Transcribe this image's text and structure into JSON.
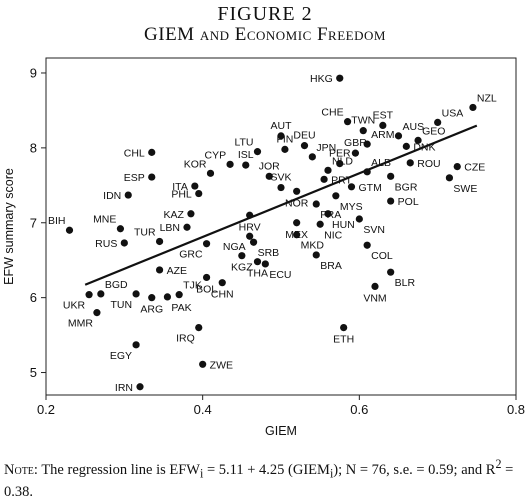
{
  "figure": {
    "number": "FIGURE 2",
    "title": "GIEM and Economic Freedom"
  },
  "note": {
    "prefix": "Note:",
    "text1": "The regression line is EFW",
    "sub1": "i",
    "text2": " = 5.11 + 4.25 (GIEM",
    "sub2": "i",
    "text3": "); N = 76, s.e. = 0.59; and R",
    "sup": "2",
    "text4": " = 0.38."
  },
  "chart_data": {
    "type": "scatter",
    "xlabel": "GIEM",
    "ylabel": "EFW summary score",
    "xlim": [
      0.2,
      0.8
    ],
    "ylim": [
      4.7,
      9.2
    ],
    "xticks": [
      "0.2",
      "0.4",
      "0.6",
      "0.8"
    ],
    "xtick_values": [
      0.2,
      0.4,
      0.6,
      0.8
    ],
    "yticks": [
      "5",
      "6",
      "7",
      "8",
      "9"
    ],
    "ytick_values": [
      5,
      6,
      7,
      8,
      9
    ],
    "grid": false,
    "regression": {
      "intercept": 5.11,
      "slope": 4.25,
      "x_range": [
        0.25,
        0.75
      ]
    },
    "points": [
      {
        "label": "HKG",
        "x": 0.575,
        "y": 8.93,
        "pos": "w"
      },
      {
        "label": "NZL",
        "x": 0.745,
        "y": 8.54,
        "pos": "ne"
      },
      {
        "label": "CHE",
        "x": 0.585,
        "y": 8.35,
        "pos": "nw"
      },
      {
        "label": "TWN",
        "x": 0.605,
        "y": 8.23,
        "pos": "n"
      },
      {
        "label": "EST",
        "x": 0.63,
        "y": 8.3,
        "pos": "n"
      },
      {
        "label": "USA",
        "x": 0.7,
        "y": 8.34,
        "pos": "ne"
      },
      {
        "label": "AUT",
        "x": 0.5,
        "y": 8.16,
        "pos": "n"
      },
      {
        "label": "DEU",
        "x": 0.53,
        "y": 8.03,
        "pos": "n"
      },
      {
        "label": "ARM",
        "x": 0.61,
        "y": 8.05,
        "pos": "ne"
      },
      {
        "label": "AUS",
        "x": 0.65,
        "y": 8.16,
        "pos": "ne"
      },
      {
        "label": "GEO",
        "x": 0.675,
        "y": 8.1,
        "pos": "ne"
      },
      {
        "label": "DNK",
        "x": 0.66,
        "y": 8.02,
        "pos": "e"
      },
      {
        "label": "FIN",
        "x": 0.505,
        "y": 7.98,
        "pos": "n"
      },
      {
        "label": "LTU",
        "x": 0.47,
        "y": 7.95,
        "pos": "nw"
      },
      {
        "label": "JPN",
        "x": 0.54,
        "y": 7.88,
        "pos": "ne"
      },
      {
        "label": "GBR",
        "x": 0.595,
        "y": 7.93,
        "pos": "n"
      },
      {
        "label": "CHL",
        "x": 0.335,
        "y": 7.94,
        "pos": "w"
      },
      {
        "label": "CYP",
        "x": 0.435,
        "y": 7.78,
        "pos": "nw"
      },
      {
        "label": "ISL",
        "x": 0.455,
        "y": 7.77,
        "pos": "n"
      },
      {
        "label": "PER",
        "x": 0.575,
        "y": 7.79,
        "pos": "n"
      },
      {
        "label": "NLD",
        "x": 0.56,
        "y": 7.7,
        "pos": "ne"
      },
      {
        "label": "KOR",
        "x": 0.41,
        "y": 7.66,
        "pos": "nw"
      },
      {
        "label": "JOR",
        "x": 0.485,
        "y": 7.62,
        "pos": "n"
      },
      {
        "label": "PRT",
        "x": 0.555,
        "y": 7.58,
        "pos": "e"
      },
      {
        "label": "ALB",
        "x": 0.61,
        "y": 7.68,
        "pos": "ne"
      },
      {
        "label": "ESP",
        "x": 0.335,
        "y": 7.61,
        "pos": "w"
      },
      {
        "label": "ITA",
        "x": 0.39,
        "y": 7.49,
        "pos": "w"
      },
      {
        "label": "SVK",
        "x": 0.5,
        "y": 7.47,
        "pos": "n"
      },
      {
        "label": "ROU",
        "x": 0.665,
        "y": 7.8,
        "pos": "e"
      },
      {
        "label": "CZE",
        "x": 0.725,
        "y": 7.75,
        "pos": "e"
      },
      {
        "label": "IDN",
        "x": 0.305,
        "y": 7.37,
        "pos": "w"
      },
      {
        "label": "PHL",
        "x": 0.395,
        "y": 7.39,
        "pos": "w"
      },
      {
        "label": "NOR",
        "x": 0.52,
        "y": 7.42,
        "pos": "s"
      },
      {
        "label": "GTM",
        "x": 0.59,
        "y": 7.48,
        "pos": "e"
      },
      {
        "label": "BGR",
        "x": 0.64,
        "y": 7.62,
        "pos": "se"
      },
      {
        "label": "SWE",
        "x": 0.715,
        "y": 7.6,
        "pos": "se"
      },
      {
        "label": "MYS",
        "x": 0.57,
        "y": 7.36,
        "pos": "se"
      },
      {
        "label": "FRA",
        "x": 0.545,
        "y": 7.25,
        "pos": "se"
      },
      {
        "label": "POL",
        "x": 0.64,
        "y": 7.29,
        "pos": "e"
      },
      {
        "label": "KAZ",
        "x": 0.385,
        "y": 7.12,
        "pos": "w"
      },
      {
        "label": "HRV",
        "x": 0.46,
        "y": 7.1,
        "pos": "s"
      },
      {
        "label": "HUN",
        "x": 0.56,
        "y": 7.12,
        "pos": "se"
      },
      {
        "label": "BIH",
        "x": 0.23,
        "y": 6.9,
        "pos": "nw"
      },
      {
        "label": "MNE",
        "x": 0.295,
        "y": 6.92,
        "pos": "nw"
      },
      {
        "label": "LBN",
        "x": 0.38,
        "y": 6.94,
        "pos": "w"
      },
      {
        "label": "SVN",
        "x": 0.6,
        "y": 7.05,
        "pos": "se"
      },
      {
        "label": "MEX",
        "x": 0.52,
        "y": 7.0,
        "pos": "s"
      },
      {
        "label": "NIC",
        "x": 0.55,
        "y": 6.98,
        "pos": "se"
      },
      {
        "label": "TUR",
        "x": 0.345,
        "y": 6.75,
        "pos": "nw"
      },
      {
        "label": "RUS",
        "x": 0.3,
        "y": 6.73,
        "pos": "w"
      },
      {
        "label": "GRC",
        "x": 0.405,
        "y": 6.72,
        "pos": "sw"
      },
      {
        "label": "NGA",
        "x": 0.46,
        "y": 6.82,
        "pos": "sw"
      },
      {
        "label": "MKD",
        "x": 0.52,
        "y": 6.84,
        "pos": "se"
      },
      {
        "label": "SRB",
        "x": 0.465,
        "y": 6.74,
        "pos": "se"
      },
      {
        "label": "COL",
        "x": 0.61,
        "y": 6.7,
        "pos": "se"
      },
      {
        "label": "BRA",
        "x": 0.545,
        "y": 6.57,
        "pos": "se"
      },
      {
        "label": "AZE",
        "x": 0.345,
        "y": 6.37,
        "pos": "e"
      },
      {
        "label": "KGZ",
        "x": 0.45,
        "y": 6.56,
        "pos": "s"
      },
      {
        "label": "ECU",
        "x": 0.48,
        "y": 6.45,
        "pos": "se"
      },
      {
        "label": "THA",
        "x": 0.47,
        "y": 6.48,
        "pos": "s"
      },
      {
        "label": "BGD",
        "x": 0.27,
        "y": 6.05,
        "pos": "ne"
      },
      {
        "label": "UKR",
        "x": 0.255,
        "y": 6.04,
        "pos": "sw"
      },
      {
        "label": "TJK",
        "x": 0.37,
        "y": 6.04,
        "pos": "ne"
      },
      {
        "label": "BOL",
        "x": 0.405,
        "y": 6.27,
        "pos": "s"
      },
      {
        "label": "CHN",
        "x": 0.425,
        "y": 6.2,
        "pos": "s"
      },
      {
        "label": "BLR",
        "x": 0.64,
        "y": 6.34,
        "pos": "se"
      },
      {
        "label": "VNM",
        "x": 0.62,
        "y": 6.15,
        "pos": "s"
      },
      {
        "label": "TUN",
        "x": 0.315,
        "y": 6.05,
        "pos": "sw"
      },
      {
        "label": "ARG",
        "x": 0.335,
        "y": 6.0,
        "pos": "s"
      },
      {
        "label": "PAK",
        "x": 0.355,
        "y": 6.01,
        "pos": "se"
      },
      {
        "label": "MMR",
        "x": 0.265,
        "y": 5.8,
        "pos": "sw"
      },
      {
        "label": "IRQ",
        "x": 0.395,
        "y": 5.6,
        "pos": "sw"
      },
      {
        "label": "ETH",
        "x": 0.58,
        "y": 5.6,
        "pos": "s"
      },
      {
        "label": "EGY",
        "x": 0.315,
        "y": 5.37,
        "pos": "sw"
      },
      {
        "label": "ZWE",
        "x": 0.4,
        "y": 5.11,
        "pos": "e"
      },
      {
        "label": "IRN",
        "x": 0.32,
        "y": 4.81,
        "pos": "w"
      }
    ]
  }
}
